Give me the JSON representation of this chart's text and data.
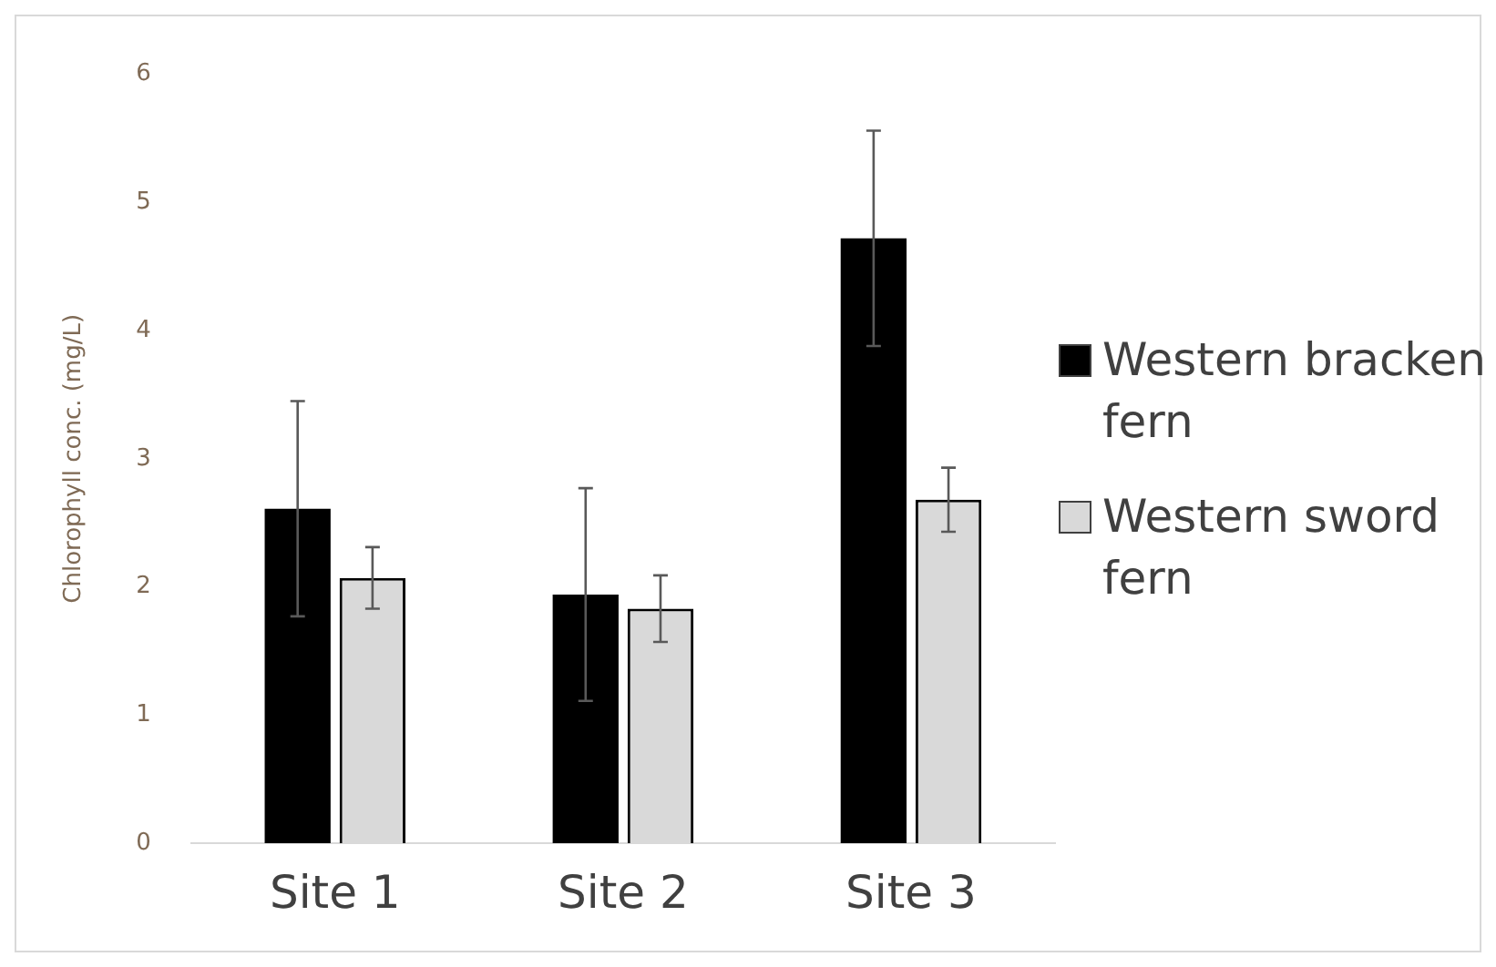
{
  "chart_data": {
    "type": "bar",
    "ylabel": "Chlorophyll conc. (mg/L)",
    "categories": [
      "Site 1",
      "Site 2",
      "Site 3"
    ],
    "series": [
      {
        "name": "Western bracken fern",
        "color": "#000000",
        "values": [
          2.61,
          1.94,
          4.72
        ],
        "errors": [
          0.84,
          0.83,
          0.84
        ]
      },
      {
        "name": "Western sword fern",
        "color": "#d9d9d9",
        "values": [
          2.07,
          1.83,
          2.68
        ],
        "errors": [
          0.24,
          0.26,
          0.25
        ]
      }
    ],
    "ylim": [
      0,
      6
    ],
    "yticks": [
      0,
      1,
      2,
      3,
      4,
      5,
      6
    ],
    "grid": false,
    "legend": "right"
  }
}
